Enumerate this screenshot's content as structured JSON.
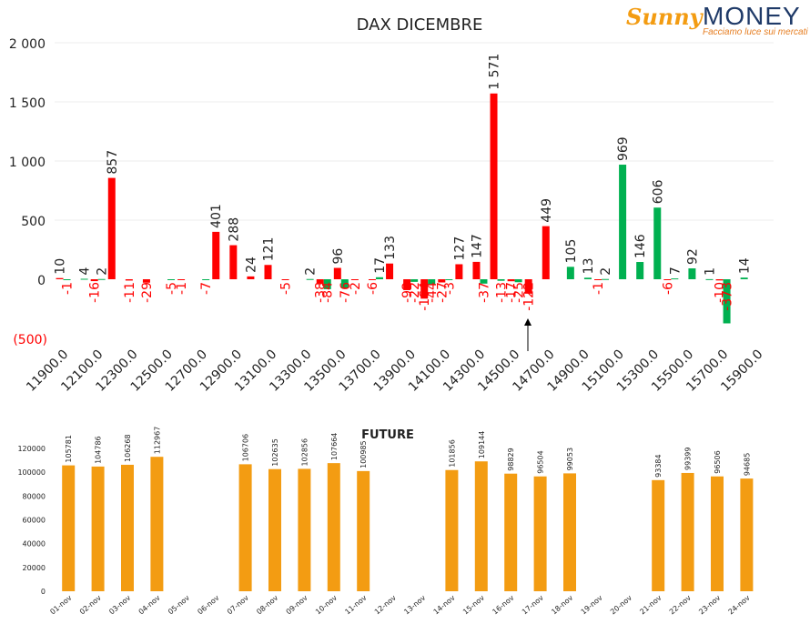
{
  "logo": {
    "brand_left": "Sunny",
    "brand_right": "MONEY",
    "tagline": "Facciamo luce sui mercati",
    "colors": {
      "sunny": "#f39c12",
      "money": "#1f3a68"
    }
  },
  "chart_data": [
    {
      "type": "bar",
      "title": "DAX DICEMBRE",
      "xlabel": "",
      "ylabel": "",
      "ylim": [
        -500,
        2000
      ],
      "yticks": [
        "(500)",
        "0",
        "500",
        "1 000",
        "1 500",
        "2 000"
      ],
      "grid": true,
      "legend": "none",
      "tick_every": 2,
      "categories": [
        "11900.0",
        "12000.0",
        "12100.0",
        "12200.0",
        "12300.0",
        "12400.0",
        "12500.0",
        "12600.0",
        "12700.0",
        "12800.0",
        "12900.0",
        "13000.0",
        "13100.0",
        "13200.0",
        "13300.0",
        "13400.0",
        "13500.0",
        "13600.0",
        "13700.0",
        "13800.0",
        "13900.0",
        "14000.0",
        "14100.0",
        "14200.0",
        "14300.0",
        "14400.0",
        "14500.0",
        "14600.0",
        "14700.0",
        "14800.0",
        "14900.0",
        "15000.0",
        "15100.0",
        "15200.0",
        "15300.0",
        "15400.0",
        "15500.0",
        "15600.0",
        "15700.0",
        "15800.0",
        "15900.0"
      ],
      "series": [
        {
          "color": "#ff0000",
          "labels": [
            "10",
            "",
            "-16",
            "857",
            "-11",
            "-29",
            "",
            "-1",
            "",
            "401",
            "288",
            "24",
            "121",
            "-5",
            "",
            "-38",
            "96",
            "-2",
            "-6",
            "133",
            "-92",
            "-164",
            "-27",
            "127",
            "147",
            "1 571",
            "-17",
            "-122",
            "449",
            "",
            "",
            "-1",
            "",
            "",
            "",
            "-6",
            "",
            "",
            "-10",
            "",
            ""
          ],
          "values": [
            10,
            0,
            -16,
            857,
            -11,
            -29,
            0,
            -1,
            0,
            401,
            288,
            24,
            121,
            -5,
            0,
            -38,
            96,
            -2,
            -6,
            133,
            -92,
            -164,
            -27,
            127,
            147,
            1571,
            -17,
            -122,
            449,
            0,
            0,
            -1,
            0,
            0,
            0,
            -6,
            0,
            0,
            -10,
            0,
            0
          ]
        },
        {
          "color": "#00b050",
          "labels": [
            "-1",
            "4",
            "2",
            "",
            "",
            "",
            "-5",
            "",
            "-7",
            "",
            "",
            "",
            "",
            "",
            "2",
            "-84",
            "-76",
            "",
            "17",
            "",
            "-22",
            "-44",
            "-3",
            "",
            "-37",
            "-13",
            "-25",
            "",
            "",
            "105",
            "13",
            "2",
            "969",
            "146",
            "606",
            "7",
            "92",
            "1",
            "-373",
            "14",
            ""
          ],
          "values": [
            -1,
            4,
            2,
            0,
            0,
            0,
            -5,
            0,
            -7,
            0,
            0,
            0,
            0,
            0,
            2,
            -84,
            -76,
            0,
            17,
            0,
            -22,
            -44,
            -3,
            0,
            -37,
            -13,
            -25,
            0,
            0,
            105,
            13,
            2,
            969,
            146,
            606,
            7,
            92,
            1,
            -373,
            14,
            0
          ]
        }
      ],
      "annotation": "arrow-up"
    },
    {
      "type": "bar",
      "title": "FUTURE",
      "xlabel": "",
      "ylabel": "",
      "ylim": [
        0,
        120000
      ],
      "yticks": [
        "0",
        "20000",
        "40000",
        "60000",
        "80000",
        "100000",
        "120000"
      ],
      "grid": false,
      "legend": "none",
      "color": "#f39c12",
      "categories": [
        "01-nov",
        "02-nov",
        "03-nov",
        "04-nov",
        "05-nov",
        "06-nov",
        "07-nov",
        "08-nov",
        "09-nov",
        "10-nov",
        "11-nov",
        "12-nov",
        "13-nov",
        "14-nov",
        "15-nov",
        "16-nov",
        "17-nov",
        "18-nov",
        "19-nov",
        "20-nov",
        "21-nov",
        "22-nov",
        "23-nov",
        "24-nov"
      ],
      "values": [
        105781,
        104786,
        106268,
        112967,
        null,
        null,
        106706,
        102635,
        102856,
        107664,
        100985,
        null,
        null,
        101856,
        109144,
        98829,
        96504,
        99053,
        null,
        null,
        93384,
        99399,
        96506,
        94685
      ],
      "labels": [
        "105781",
        "104786",
        "106268",
        "112967",
        "",
        "",
        "106706",
        "102635",
        "102856",
        "107664",
        "100985",
        "",
        "",
        "101856",
        "109144",
        "98829",
        "96504",
        "99053",
        "",
        "",
        "93384",
        "99399",
        "96506",
        "94685"
      ]
    }
  ]
}
